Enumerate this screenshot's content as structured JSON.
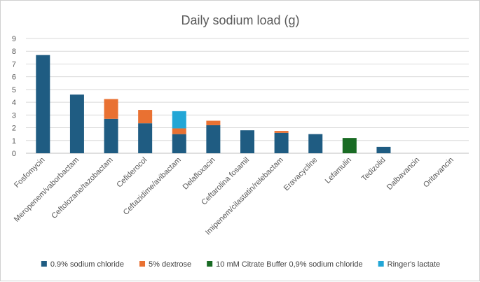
{
  "chart_data": {
    "type": "bar",
    "stacked": true,
    "title": "Daily sodium load (g)",
    "xlabel": "",
    "ylabel": "",
    "ylim": [
      0,
      9
    ],
    "yticks": [
      "0",
      "1",
      "2",
      "3",
      "4",
      "5",
      "6",
      "7",
      "8",
      "9"
    ],
    "grid": true,
    "legend_position": "bottom",
    "categories": [
      "Fosfomycin",
      "Meropenem/vaborbactam",
      "Ceftolozane/tazobactam",
      "Cefiderocol",
      "Ceftazidime/avibactam",
      "Delafloxacin",
      "Ceftarolina fosamil",
      "Imipenem/cilastatin/relebactam",
      "Eravacycline",
      "Lefamulin",
      "Tedizolid",
      "Dalbavancin",
      "Oritavancin"
    ],
    "series": [
      {
        "name": "0.9% sodium chloride",
        "color": "#1f5c82",
        "values": [
          7.7,
          4.6,
          2.7,
          2.35,
          1.5,
          2.2,
          1.8,
          1.6,
          1.5,
          0,
          0.5,
          0,
          0
        ]
      },
      {
        "name": "5% dextrose",
        "color": "#e97132",
        "values": [
          0,
          0,
          1.55,
          1.05,
          0.45,
          0.35,
          0,
          0.15,
          0,
          0,
          0,
          0,
          0
        ]
      },
      {
        "name": "10 mM Citrate Buffer 0,9% sodium chloride",
        "color": "#196b24",
        "values": [
          0,
          0,
          0,
          0,
          0,
          0,
          0,
          0,
          0,
          1.2,
          0,
          0,
          0
        ]
      },
      {
        "name": "Ringer's lactate",
        "color": "#22a6d6",
        "values": [
          0,
          0,
          0,
          0,
          1.35,
          0,
          0,
          0,
          0,
          0,
          0,
          0,
          0
        ]
      }
    ]
  }
}
